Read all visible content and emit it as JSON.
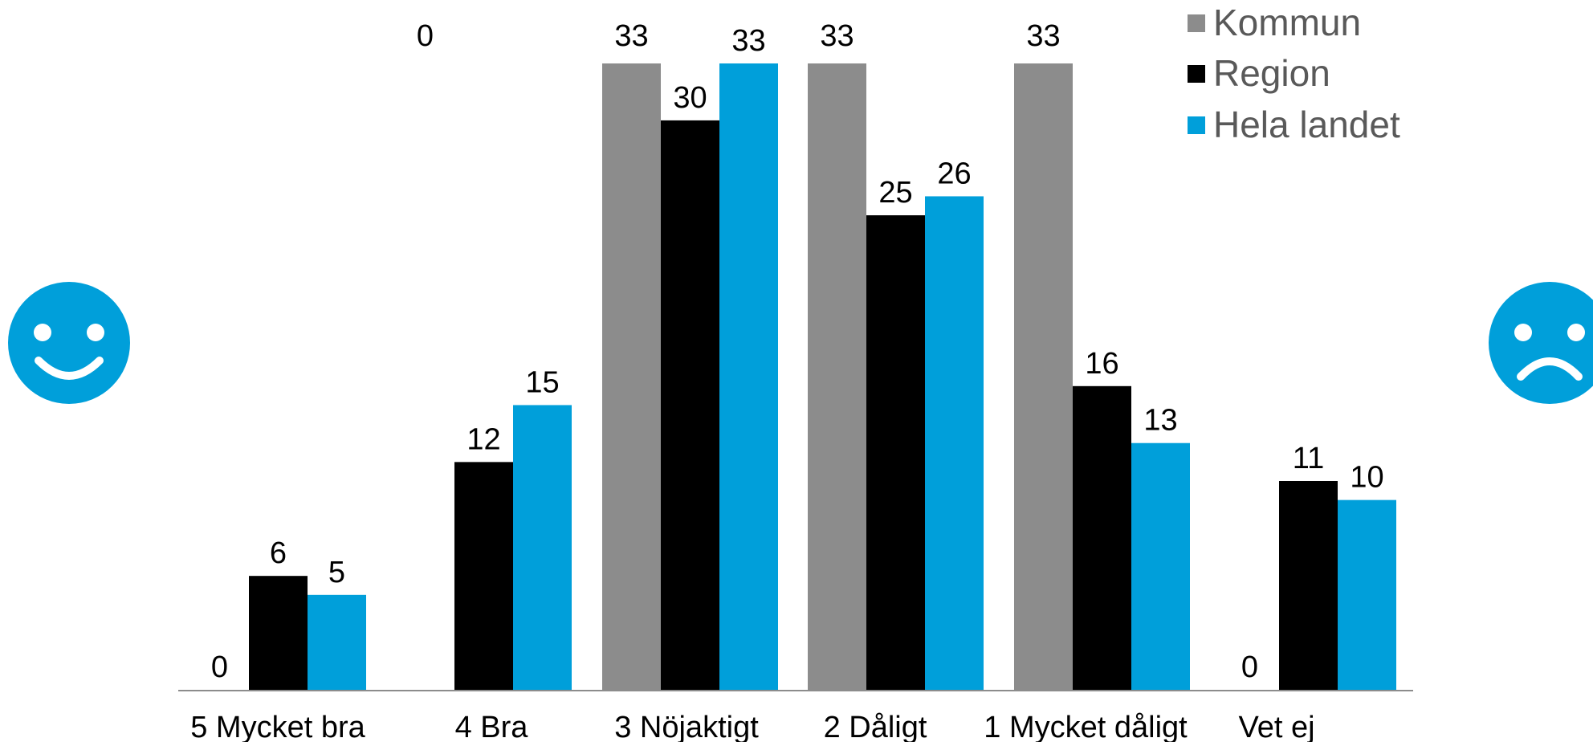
{
  "chart_data": {
    "type": "bar",
    "categories": [
      "5 Mycket bra",
      "4 Bra",
      "3 Nöjaktigt",
      "2 Dåligt",
      "1 Mycket dåligt",
      "Vet ej"
    ],
    "series": [
      {
        "name": "Kommun",
        "color": "#8c8c8c",
        "values": [
          0,
          0,
          33,
          33,
          33,
          0
        ]
      },
      {
        "name": "Region",
        "color": "#000000",
        "values": [
          6,
          12,
          30,
          25,
          16,
          11
        ]
      },
      {
        "name": "Hela landet",
        "color": "#009fda",
        "values": [
          5,
          15,
          33,
          26,
          13,
          10
        ]
      }
    ],
    "data_labels": [
      [
        "0",
        "",
        "",
        "",
        "",
        "0"
      ],
      [
        "6",
        "12",
        "30",
        "25",
        "16",
        "11"
      ],
      [
        "5",
        "15",
        "33",
        "26",
        "13",
        "10"
      ]
    ],
    "top_labels": [
      "",
      "0",
      "33",
      "33",
      "33",
      ""
    ],
    "legend": {
      "placement": "top-right"
    },
    "icons": {
      "left": {
        "name": "smiley-happy-icon",
        "color": "#009fda"
      },
      "right": {
        "name": "smiley-sad-icon",
        "color": "#009fda"
      }
    },
    "grid": false,
    "ylim": [
      0,
      33
    ]
  }
}
